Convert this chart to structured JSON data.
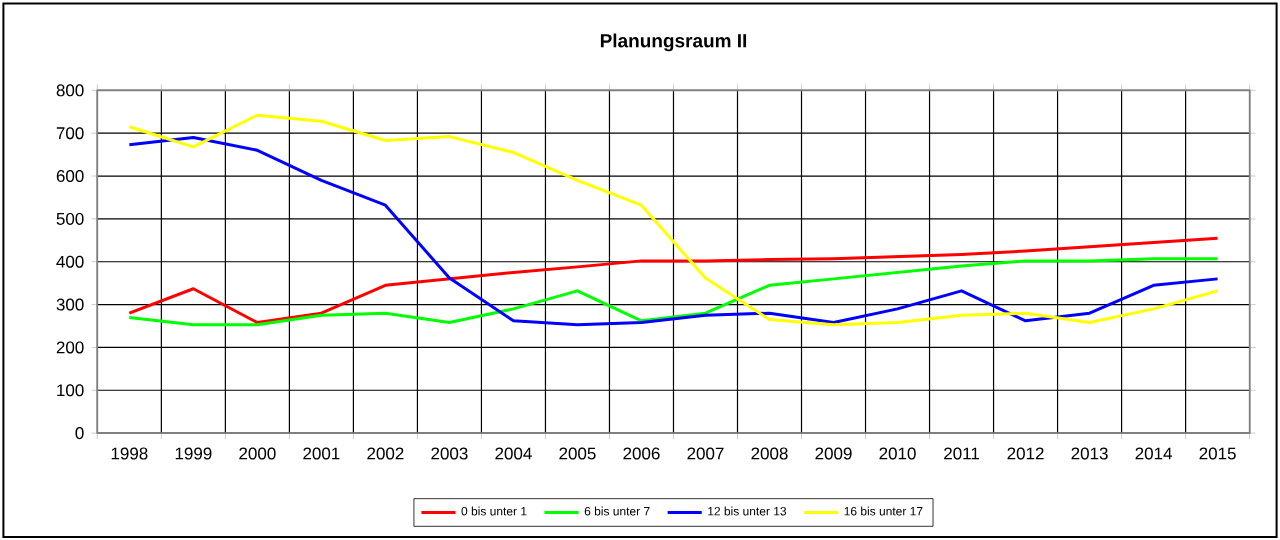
{
  "chart_data": {
    "type": "line",
    "title": "Planungsraum II",
    "categories": [
      "1998",
      "1999",
      "2000",
      "2001",
      "2002",
      "2003",
      "2004",
      "2005",
      "2006",
      "2007",
      "2008",
      "2009",
      "2010",
      "2011",
      "2012",
      "2013",
      "2014",
      "2015"
    ],
    "series": [
      {
        "name": "0 bis unter 1",
        "color": "#ff0000",
        "values": [
          280,
          337,
          258,
          280,
          345,
          360,
          375,
          388,
          402,
          402,
          405,
          407,
          412,
          417,
          425,
          435,
          445,
          455
        ]
      },
      {
        "name": "6 bis unter 7",
        "color": "#00ff00",
        "values": [
          270,
          253,
          253,
          275,
          280,
          258,
          290,
          332,
          262,
          280,
          345,
          360,
          375,
          390,
          402,
          402,
          407,
          407
        ]
      },
      {
        "name": "12 bis unter 13",
        "color": "#0000ff",
        "values": [
          673,
          690,
          660,
          590,
          532,
          362,
          262,
          253,
          258,
          275,
          280,
          258,
          290,
          332,
          262,
          280,
          345,
          360
        ]
      },
      {
        "name": "16 bis unter 17",
        "color": "#ffff00",
        "values": [
          715,
          668,
          742,
          728,
          683,
          692,
          655,
          590,
          532,
          362,
          265,
          253,
          258,
          275,
          280,
          258,
          290,
          332
        ]
      }
    ],
    "ylim": [
      0,
      800
    ],
    "yticks": [
      0,
      100,
      200,
      300,
      400,
      500,
      600,
      700,
      800
    ],
    "grid": true,
    "legend": "bottom",
    "marker": "none",
    "line_style": "solid"
  }
}
